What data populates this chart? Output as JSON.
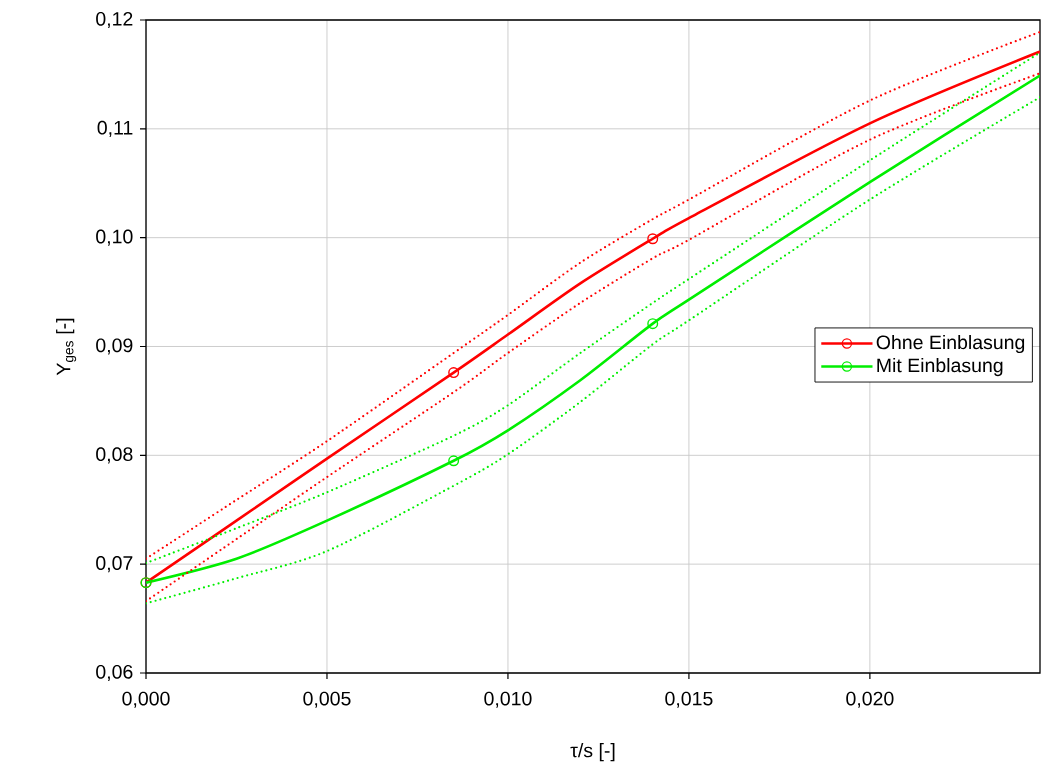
{
  "chart_data": {
    "type": "line",
    "xlabel": "τ/s [-]",
    "ylabel": "Y$_{ges}$ [-]",
    "xlim": [
      0,
      0.0247
    ],
    "ylim": [
      0.06,
      0.12
    ],
    "xticks": [
      {
        "value": 0,
        "label": "0,000"
      },
      {
        "value": 0.005,
        "label": "0,005"
      },
      {
        "value": 0.01,
        "label": "0,010"
      },
      {
        "value": 0.015,
        "label": "0,015"
      },
      {
        "value": 0.02,
        "label": "0,020"
      }
    ],
    "yticks": [
      {
        "value": 0.06,
        "label": "0,06"
      },
      {
        "value": 0.07,
        "label": "0,07"
      },
      {
        "value": 0.08,
        "label": "0,08"
      },
      {
        "value": 0.09,
        "label": "0,09"
      },
      {
        "value": 0.1,
        "label": "0,10"
      },
      {
        "value": 0.11,
        "label": "0,11"
      },
      {
        "value": 0.12,
        "label": "0,12"
      }
    ],
    "grid": true,
    "legend": "right",
    "line_style": "solid",
    "x": [
      0,
      0.0025,
      0.005,
      0.0085,
      0.01,
      0.012,
      0.014,
      0.015,
      0.02,
      0.0247
    ],
    "series": [
      {
        "name": "Ohne Einblasung",
        "color": "#ff0000",
        "marker": "none",
        "values": [
          0.0683,
          0.074,
          0.0797,
          0.0876,
          0.0911,
          0.0958,
          0.0999,
          0.1018,
          0.1105,
          0.1171
        ]
      },
      {
        "name": "Mit Einblasung",
        "color": "#00ee00",
        "marker": "none",
        "values": [
          0.0683,
          0.0705,
          0.074,
          0.0795,
          0.0823,
          0.0869,
          0.0921,
          0.0943,
          0.1051,
          0.1149
        ]
      },
      {
        "color": "#ff0000",
        "marker": "none",
        "line_style": "dotted",
        "values": [
          0.0705,
          0.0759,
          0.0813,
          0.0894,
          0.0929,
          0.0977,
          0.1017,
          0.1035,
          0.1126,
          0.1189
        ]
      },
      {
        "color": "#ff0000",
        "marker": "none",
        "line_style": "dotted",
        "values": [
          0.0666,
          0.0723,
          0.078,
          0.0858,
          0.0894,
          0.094,
          0.0981,
          0.0998,
          0.109,
          0.1151
        ]
      },
      {
        "color": "#00ee00",
        "marker": "none",
        "line_style": "dotted",
        "values": [
          0.0701,
          0.0733,
          0.0766,
          0.0818,
          0.0846,
          0.0894,
          0.094,
          0.0962,
          0.1071,
          0.117
        ]
      },
      {
        "color": "#00ee00",
        "marker": "none",
        "line_style": "dotted",
        "values": [
          0.0664,
          0.0687,
          0.0712,
          0.0772,
          0.0801,
          0.0849,
          0.0902,
          0.0924,
          0.1035,
          0.1129
        ]
      },
      {
        "type": "scatter",
        "color": "#ff0000",
        "marker": "circle",
        "x": [
          0,
          0.0085,
          0.014
        ],
        "values": [
          0.0683,
          0.0876,
          0.0999
        ]
      },
      {
        "type": "scatter",
        "color": "#00ee00",
        "marker": "circle",
        "x": [
          0,
          0.0085,
          0.014
        ],
        "values": [
          0.0683,
          0.0795,
          0.0921
        ]
      }
    ]
  }
}
